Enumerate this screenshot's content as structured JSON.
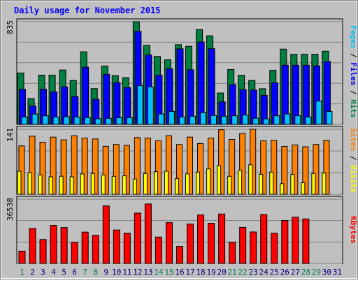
{
  "title": "Daily usage for November 2015",
  "colors": {
    "background": "#c0c0c0",
    "title": "#0000ff",
    "pages": "#00c0ff",
    "files": "#0000ff",
    "hits": "#008040",
    "sites": "#ff8000",
    "visits": "#ffff00",
    "kbytes": "#ff0000",
    "weekend_label": "#00805c",
    "weekday_label": "#000080",
    "grid": "#808080"
  },
  "chart_data": [
    {
      "type": "bar",
      "panel": "hits-files-pages",
      "ytick_top": "835",
      "ylim": [
        0,
        835
      ],
      "right_labels": [
        {
          "text": "Pages",
          "series": "pages"
        },
        {
          "text": " / ",
          "series": "separator"
        },
        {
          "text": "Files",
          "series": "files"
        },
        {
          "text": " / ",
          "series": "separator"
        },
        {
          "text": "Hits",
          "series": "hits"
        }
      ],
      "x": [
        1,
        2,
        3,
        4,
        5,
        6,
        7,
        8,
        9,
        10,
        11,
        12,
        13,
        14,
        15,
        16,
        17,
        18,
        19,
        20,
        21,
        22,
        23,
        24,
        25,
        26,
        27,
        28,
        29,
        30,
        31
      ],
      "series": [
        {
          "name": "Hits",
          "key": "hits",
          "values": [
            418,
            210,
            400,
            400,
            442,
            357,
            590,
            291,
            474,
            396,
            380,
            835,
            642,
            552,
            525,
            648,
            635,
            770,
            720,
            255,
            446,
            399,
            357,
            290,
            440,
            612,
            570,
            570,
            570,
            595,
            0
          ]
        },
        {
          "name": "Files",
          "key": "files",
          "values": [
            285,
            150,
            285,
            264,
            305,
            226,
            465,
            204,
            407,
            338,
            300,
            757,
            564,
            400,
            452,
            614,
            444,
            670,
            615,
            183,
            323,
            282,
            279,
            236,
            338,
            481,
            481,
            481,
            476,
            510,
            0
          ]
        },
        {
          "name": "Pages",
          "key": "pages",
          "values": [
            60,
            84,
            70,
            60,
            62,
            60,
            55,
            46,
            49,
            54,
            55,
            315,
            305,
            85,
            105,
            60,
            66,
            95,
            72,
            66,
            70,
            76,
            50,
            45,
            70,
            85,
            70,
            60,
            190,
            105,
            0
          ]
        }
      ]
    },
    {
      "type": "bar",
      "panel": "sites-visits",
      "ytick_top": "141",
      "ylim": [
        0,
        141
      ],
      "right_labels": [
        {
          "text": "Sites",
          "series": "sites"
        },
        {
          "text": " / ",
          "series": "separator"
        },
        {
          "text": "Visits",
          "series": "visits"
        }
      ],
      "x": [
        1,
        2,
        3,
        4,
        5,
        6,
        7,
        8,
        9,
        10,
        11,
        12,
        13,
        14,
        15,
        16,
        17,
        18,
        19,
        20,
        21,
        22,
        23,
        24,
        25,
        26,
        27,
        28,
        29,
        30,
        31
      ],
      "series": [
        {
          "name": "Sites",
          "key": "sites",
          "values": [
            105,
            126,
            113,
            124,
            118,
            127,
            122,
            120,
            104,
            108,
            106,
            123,
            122,
            116,
            127,
            108,
            124,
            110,
            122,
            140,
            119,
            132,
            141,
            116,
            117,
            104,
            107,
            103,
            108,
            117,
            0
          ]
        },
        {
          "name": "Visits",
          "key": "visits",
          "values": [
            50,
            47,
            42,
            38,
            39,
            38,
            44,
            45,
            42,
            39,
            40,
            33,
            45,
            49,
            50,
            34,
            44,
            48,
            55,
            62,
            39,
            52,
            64,
            43,
            48,
            23,
            43,
            25,
            45,
            46,
            0
          ]
        }
      ]
    },
    {
      "type": "bar",
      "panel": "kbytes",
      "ytick_top": "36538",
      "ylim": [
        0,
        36538
      ],
      "right_labels": [
        {
          "text": "KBytes",
          "series": "kbytes"
        }
      ],
      "x": [
        1,
        2,
        3,
        4,
        5,
        6,
        7,
        8,
        9,
        10,
        11,
        12,
        13,
        14,
        15,
        16,
        17,
        18,
        19,
        20,
        21,
        22,
        23,
        24,
        25,
        26,
        27,
        28,
        29,
        30,
        31
      ],
      "series": [
        {
          "name": "KBytes",
          "key": "kbytes",
          "values": [
            7000,
            19900,
            13600,
            21600,
            20400,
            12000,
            17800,
            16000,
            32700,
            19000,
            17200,
            28600,
            33800,
            15000,
            23200,
            9700,
            22400,
            27600,
            22800,
            28100,
            12100,
            20500,
            17900,
            27800,
            17200,
            24400,
            26300,
            25300,
            0,
            0,
            0
          ]
        }
      ]
    }
  ],
  "x_axis": {
    "labels": [
      "1",
      "2",
      "3",
      "4",
      "5",
      "6",
      "7",
      "8",
      "9",
      "10",
      "11",
      "12",
      "13",
      "14",
      "15",
      "16",
      "17",
      "18",
      "19",
      "20",
      "21",
      "22",
      "23",
      "24",
      "25",
      "26",
      "27",
      "28",
      "29",
      "30",
      "31"
    ],
    "weekend_days": [
      1,
      7,
      8,
      14,
      15,
      21,
      22,
      28,
      29
    ]
  }
}
